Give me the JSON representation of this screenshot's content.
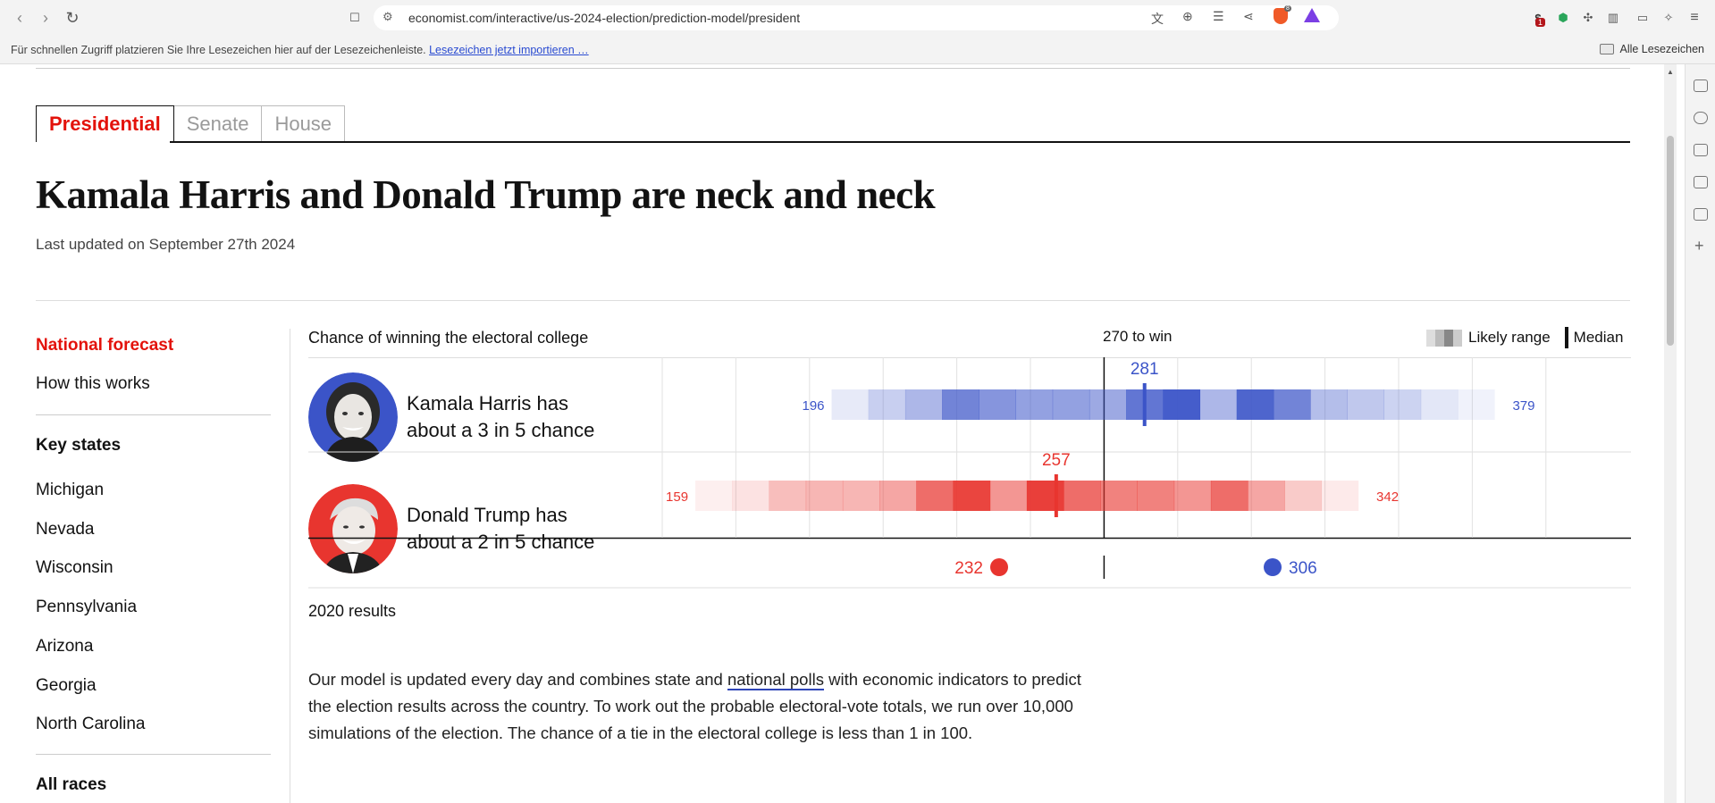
{
  "browser": {
    "url": "economist.com/interactive/us-2024-election/prediction-model/president",
    "bookmarks_hint": "Für schnellen Zugriff platzieren Sie Ihre Lesezeichen hier auf der Lesezeichenleiste.",
    "bookmarks_link": "Lesezeichen jetzt importieren …",
    "all_bookmarks": "Alle Lesezeichen",
    "ext_badges": {
      "s": "1",
      "brave": "8"
    }
  },
  "tabs": [
    "Presidential",
    "Senate",
    "House"
  ],
  "headline": "Kamala Harris and Donald Trump are neck and neck",
  "updated": "Last updated on September 27th 2024",
  "sidebar": {
    "national_forecast": "National forecast",
    "how_this_works": "How this works",
    "key_states_heading": "Key states",
    "states": [
      "Michigan",
      "Nevada",
      "Wisconsin",
      "Pennsylvania",
      "Arizona",
      "Georgia",
      "North Carolina"
    ],
    "all_races": "All races"
  },
  "chart_header": {
    "title": "Chance of winning the electoral college",
    "threshold_label": "270 to win",
    "legend_range": "Likely range",
    "legend_median": "Median"
  },
  "candidates": [
    {
      "name": "Kamala Harris",
      "text_line1": "Kamala Harris has",
      "text_line2": "about a 3 in 5 chance",
      "low": "196",
      "high": "379",
      "median": "281",
      "color": "#3b54c8"
    },
    {
      "name": "Donald Trump",
      "text_line1": "Donald Trump has",
      "text_line2": "about a 2 in 5 chance",
      "low": "159",
      "high": "342",
      "median": "257",
      "color": "#e8352f"
    }
  ],
  "results_2020": {
    "label": "2020 results",
    "rep": "232",
    "dem": "306"
  },
  "body": {
    "part1": "Our model is updated every day and combines state and ",
    "link": "national polls",
    "part2": " with economic indicators to predict the election results across the country. To work out the probable electoral-vote totals, we run over 10,000 simulations of the election. The chance of a tie in the electoral college is less than 1 in 100."
  },
  "chart_data": {
    "type": "range",
    "threshold": 270,
    "series": [
      {
        "name": "Kamala Harris",
        "low": 196,
        "high": 379,
        "median": 281,
        "bin_width": 10,
        "bin_starts": [
          196,
          206,
          216,
          226,
          236,
          246,
          256,
          266,
          276,
          286,
          296,
          306,
          316,
          326,
          336,
          346,
          356,
          366
        ],
        "bin_intensity": [
          0.12,
          0.28,
          0.42,
          0.72,
          0.62,
          0.55,
          0.55,
          0.5,
          0.8,
          0.95,
          0.42,
          0.9,
          0.72,
          0.38,
          0.32,
          0.26,
          0.14,
          0.08
        ]
      },
      {
        "name": "Donald Trump",
        "low": 159,
        "high": 342,
        "median": 257,
        "bin_width": 10,
        "bin_starts": [
          159,
          169,
          179,
          189,
          199,
          209,
          219,
          229,
          239,
          249,
          259,
          269,
          279,
          289,
          299,
          309,
          319,
          329
        ],
        "bin_intensity": [
          0.08,
          0.14,
          0.32,
          0.36,
          0.36,
          0.44,
          0.72,
          0.92,
          0.52,
          0.95,
          0.72,
          0.62,
          0.62,
          0.52,
          0.72,
          0.44,
          0.26,
          0.1
        ]
      }
    ],
    "results_2020": {
      "Trump": 232,
      "Biden": 306
    }
  }
}
